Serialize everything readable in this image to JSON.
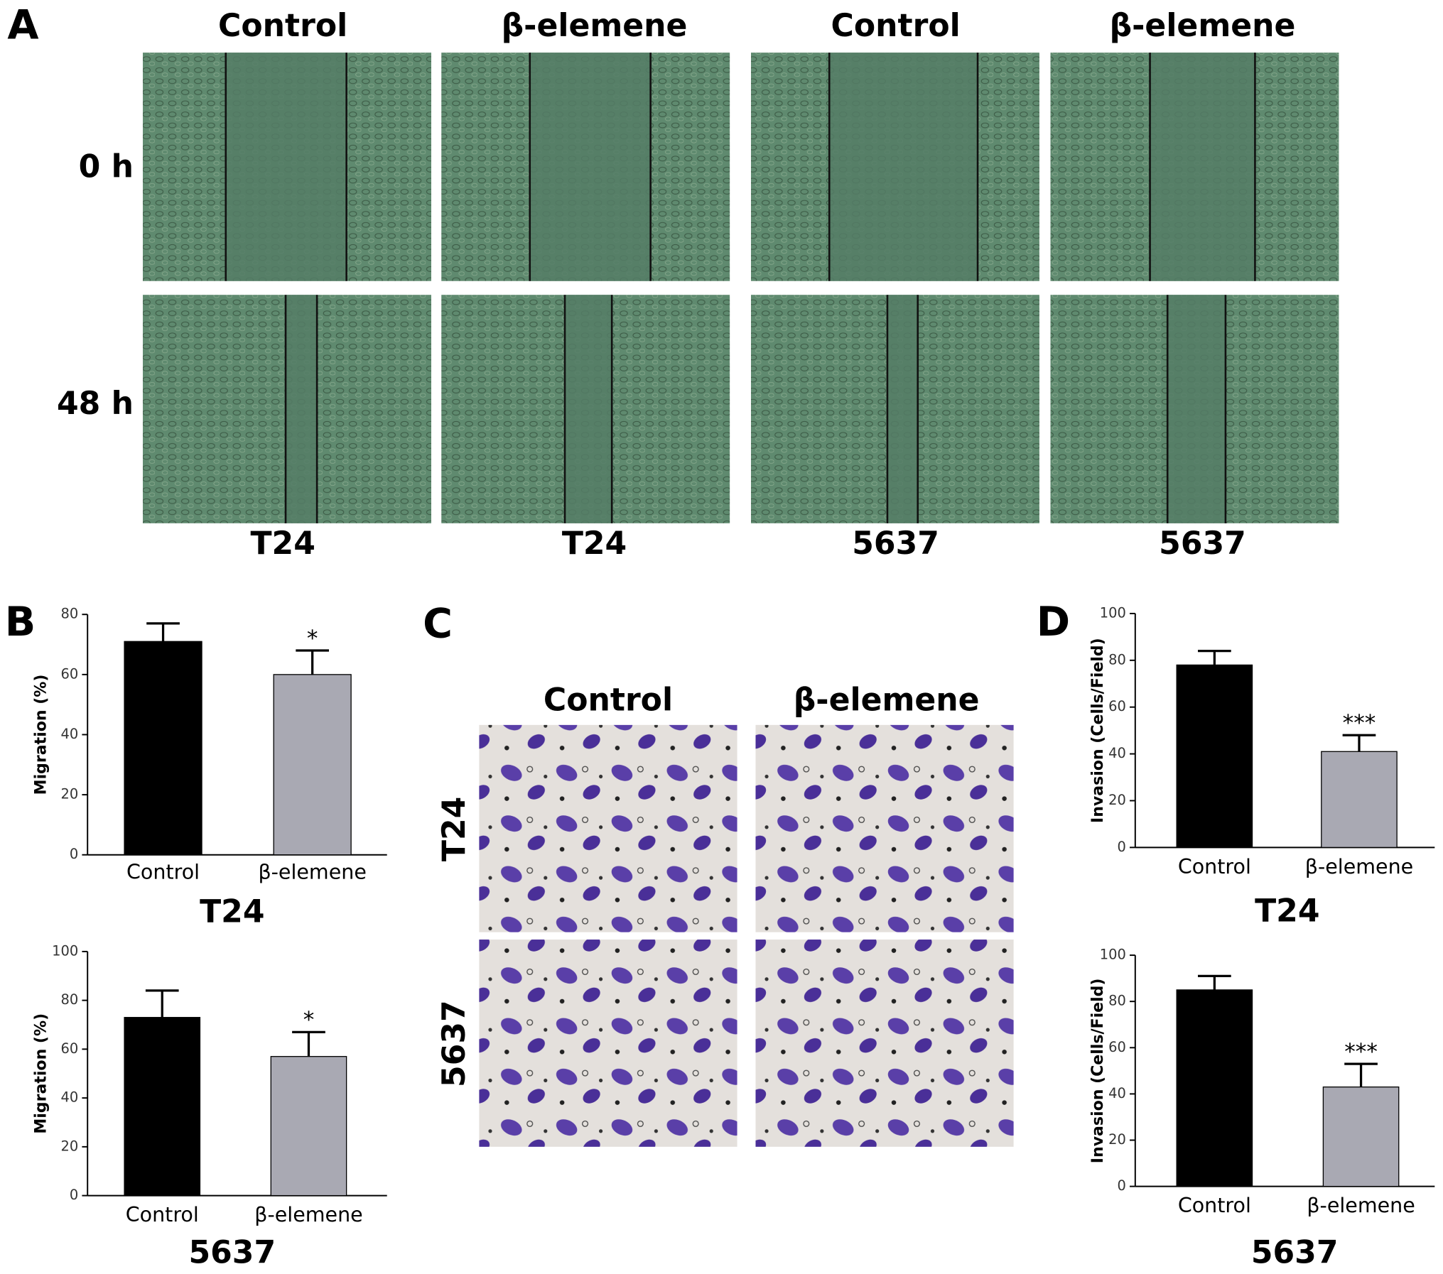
{
  "panel_labels": [
    "A",
    "B",
    "C",
    "D"
  ],
  "panel_a": {
    "columns": [
      "Control",
      "β-elemene",
      "Control",
      "β-elemene"
    ],
    "rows": [
      "0 h",
      "48 h"
    ],
    "captions": [
      "T24",
      "T24",
      "5637",
      "5637"
    ]
  },
  "panel_c": {
    "columns": [
      "Control",
      "β-elemene"
    ],
    "rows": [
      "T24",
      "5637"
    ]
  },
  "chart_data": [
    {
      "type": "bar",
      "title": "T24",
      "y_label": "Migration (%)",
      "categories": [
        "Control",
        "β-elemene"
      ],
      "values": [
        71,
        60
      ],
      "errors": [
        6,
        8
      ],
      "significance": [
        null,
        "*"
      ],
      "colors": [
        "#000000",
        "#a9a9b3"
      ],
      "ylim": [
        0,
        80
      ],
      "yticks": [
        0,
        20,
        40,
        60,
        80
      ]
    },
    {
      "type": "bar",
      "title": "5637",
      "y_label": "Migration (%)",
      "categories": [
        "Control",
        "β-elemene"
      ],
      "values": [
        73,
        57
      ],
      "errors": [
        11,
        10
      ],
      "significance": [
        null,
        "*"
      ],
      "colors": [
        "#000000",
        "#a9a9b3"
      ],
      "ylim": [
        0,
        100
      ],
      "yticks": [
        0,
        20,
        40,
        60,
        80,
        100
      ]
    },
    {
      "type": "bar",
      "title": "T24",
      "y_label": "Invasion (Cells/Field)",
      "categories": [
        "Control",
        "β-elemene"
      ],
      "values": [
        78,
        41
      ],
      "errors": [
        6,
        7
      ],
      "significance": [
        null,
        "***"
      ],
      "colors": [
        "#000000",
        "#a9a9b3"
      ],
      "ylim": [
        0,
        100
      ],
      "yticks": [
        0,
        20,
        40,
        60,
        80,
        100
      ]
    },
    {
      "type": "bar",
      "title": "5637",
      "y_label": "Invasion (Cells/Field)",
      "categories": [
        "Control",
        "β-elemene"
      ],
      "values": [
        85,
        43
      ],
      "errors": [
        6,
        10
      ],
      "significance": [
        null,
        "***"
      ],
      "colors": [
        "#000000",
        "#a9a9b3"
      ],
      "ylim": [
        0,
        100
      ],
      "yticks": [
        0,
        20,
        40,
        60,
        80,
        100
      ]
    }
  ]
}
